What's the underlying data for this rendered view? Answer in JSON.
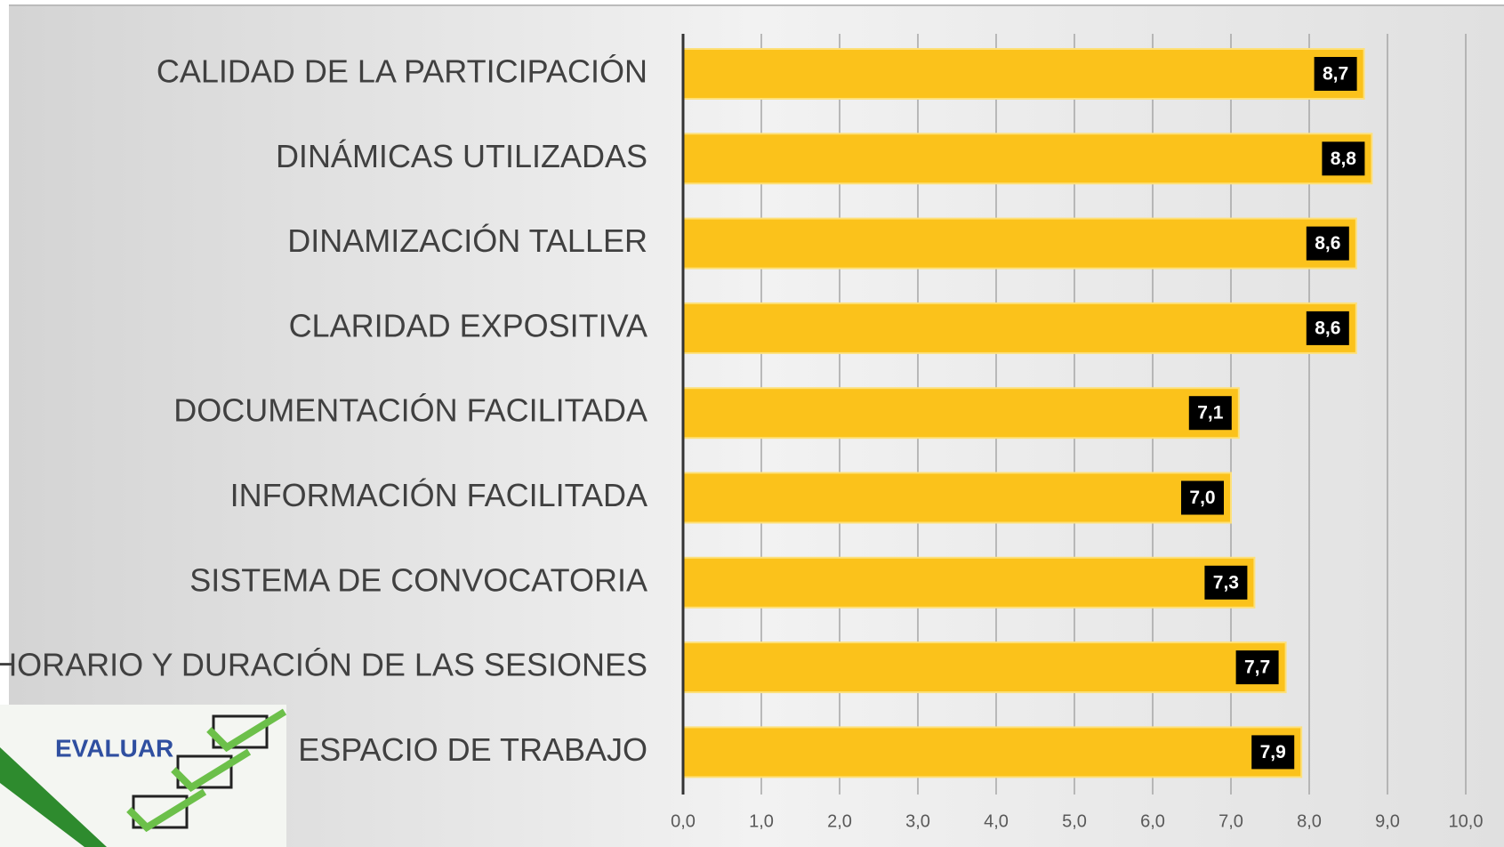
{
  "chart_data": {
    "type": "bar",
    "orientation": "horizontal",
    "categories": [
      "CALIDAD DE LA PARTICIPACIÓN",
      "DINÁMICAS UTILIZADAS",
      "DINAMIZACIÓN TALLER",
      "CLARIDAD EXPOSITIVA",
      "DOCUMENTACIÓN FACILITADA",
      "INFORMACIÓN FACILITADA",
      "SISTEMA DE CONVOCATORIA",
      "HORARIO Y DURACIÓN DE LAS SESIONES",
      "ESPACIO DE TRABAJO"
    ],
    "values": [
      8.7,
      8.8,
      8.6,
      8.6,
      7.1,
      7.0,
      7.3,
      7.7,
      7.9
    ],
    "value_labels": [
      "8,7",
      "8,8",
      "8,6",
      "8,6",
      "7,1",
      "7,0",
      "7,3",
      "7,7",
      "7,9"
    ],
    "color": "#fbc21b",
    "xlim": [
      0,
      10
    ],
    "xticks": [
      {
        "value": 0,
        "label": "0,0"
      },
      {
        "value": 1,
        "label": "1,0"
      },
      {
        "value": 2,
        "label": "2,0"
      },
      {
        "value": 3,
        "label": "3,0"
      },
      {
        "value": 4,
        "label": "4,0"
      },
      {
        "value": 5,
        "label": "5,0"
      },
      {
        "value": 6,
        "label": "6,0"
      },
      {
        "value": 7,
        "label": "7,0"
      },
      {
        "value": 8,
        "label": "8,0"
      },
      {
        "value": 9,
        "label": "9,0"
      },
      {
        "value": 10,
        "label": "10,0"
      }
    ],
    "grid": true,
    "image_text": "EVALUAR"
  }
}
